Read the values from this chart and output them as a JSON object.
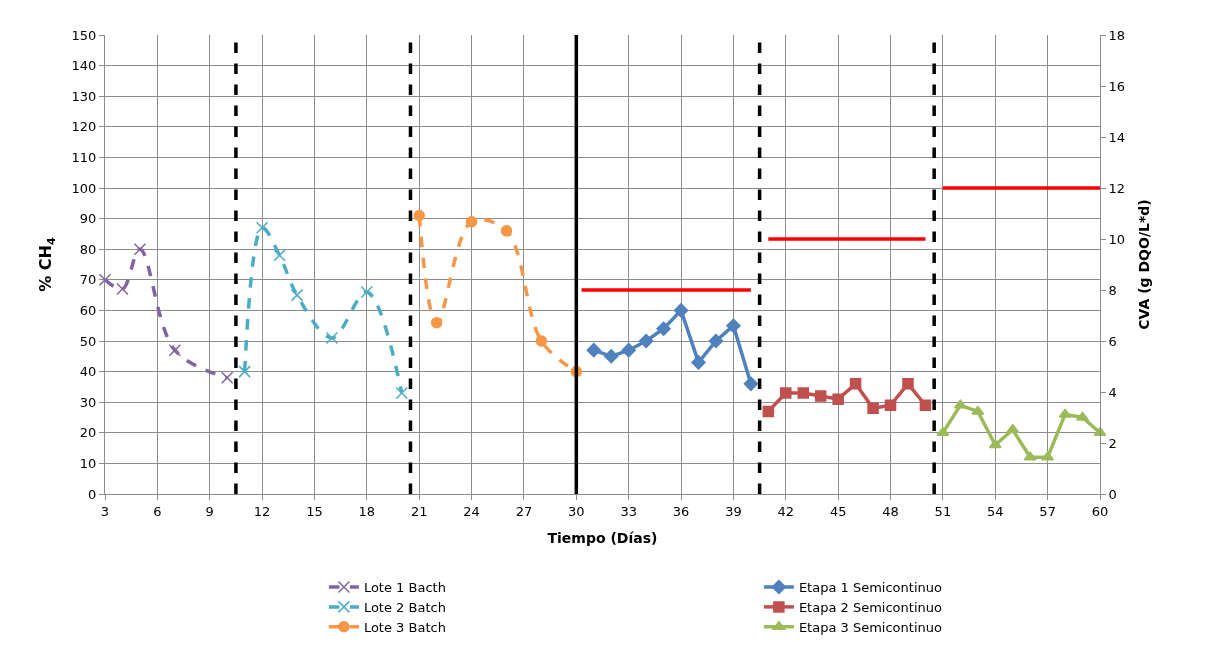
{
  "chart_data": {
    "type": "line",
    "xlabel": "Tiempo (Días)",
    "ylabel": "% CH$_{4}$",
    "y2label": "CVA (g DQO/L*d)",
    "xlim": [
      3,
      60
    ],
    "xticks": [
      3,
      6,
      9,
      12,
      15,
      18,
      21,
      24,
      27,
      30,
      33,
      36,
      39,
      42,
      45,
      48,
      51,
      54,
      57,
      60
    ],
    "ylim": [
      0,
      150
    ],
    "yticks": [
      0,
      10,
      20,
      30,
      40,
      50,
      60,
      70,
      80,
      90,
      100,
      110,
      120,
      130,
      140,
      150
    ],
    "y2lim": [
      0,
      18
    ],
    "y2ticks": [
      0,
      2,
      4,
      6,
      8,
      10,
      12,
      14,
      16,
      18
    ],
    "grid": true,
    "legend": "bottom",
    "series": [
      {
        "name": "Lote 1 Bacth",
        "color": "#8064a2",
        "marker": "cross",
        "line_style": "dashed",
        "x": [
          3,
          4,
          5,
          7,
          10
        ],
        "values": [
          70,
          67,
          80,
          47,
          38
        ]
      },
      {
        "name": "Lote 2 Batch",
        "color": "#4bacc6",
        "marker": "cross",
        "line_style": "dashed",
        "x": [
          11,
          12,
          13,
          14,
          16,
          18,
          20
        ],
        "values": [
          40,
          87,
          78,
          65,
          51,
          66,
          33
        ]
      },
      {
        "name": "Lote 3 Batch",
        "color": "#f79646",
        "marker": "circle",
        "line_style": "dashed",
        "x": [
          21,
          22,
          24,
          26,
          28,
          30
        ],
        "values": [
          91,
          56,
          89,
          86,
          50,
          40
        ]
      },
      {
        "name": "Etapa 1 Semicontinuo",
        "color": "#4f81bd",
        "marker": "diamond",
        "line_style": "solid",
        "x": [
          31,
          32,
          33,
          34,
          35,
          36,
          37,
          38,
          39,
          40
        ],
        "values": [
          47,
          45,
          47,
          50,
          54,
          60,
          43,
          50,
          55,
          36
        ]
      },
      {
        "name": "Etapa 2 Semicontinuo",
        "color": "#c0504d",
        "marker": "square",
        "line_style": "solid",
        "x": [
          41,
          42,
          43,
          44,
          45,
          46,
          47,
          48,
          49,
          50
        ],
        "values": [
          27,
          33,
          33,
          32,
          31,
          36,
          28,
          29,
          36,
          29
        ]
      },
      {
        "name": "Etapa 3 Semicontinuo",
        "color": "#9bbb59",
        "marker": "triangle",
        "line_style": "solid",
        "x": [
          51,
          52,
          53,
          54,
          55,
          56,
          57,
          58,
          59,
          60
        ],
        "values": [
          20,
          29,
          27,
          16,
          21,
          12,
          12,
          26,
          25,
          20
        ]
      },
      {
        "color": "#ff0000",
        "marker": "none",
        "line_style": "solid",
        "axis": "y2",
        "x": [
          30.3,
          40
        ],
        "values": [
          8,
          8
        ]
      },
      {
        "color": "#ff0000",
        "marker": "none",
        "line_style": "solid",
        "axis": "y2",
        "x": [
          41,
          50
        ],
        "values": [
          10,
          10
        ]
      },
      {
        "color": "#ff0000",
        "marker": "none",
        "line_style": "solid",
        "axis": "y2",
        "x": [
          51,
          60
        ],
        "values": [
          12,
          12
        ]
      }
    ],
    "ref_lines": [
      {
        "axis": "x",
        "value": 10.5,
        "color": "#000000",
        "line_style": "dashed"
      },
      {
        "axis": "x",
        "value": 20.5,
        "color": "#000000",
        "line_style": "dashed"
      },
      {
        "axis": "x",
        "value": 30,
        "color": "#000000",
        "line_style": "solid"
      },
      {
        "axis": "x",
        "value": 40.5,
        "color": "#000000",
        "line_style": "dashed"
      },
      {
        "axis": "x",
        "value": 50.5,
        "color": "#000000",
        "line_style": "dashed"
      }
    ]
  }
}
